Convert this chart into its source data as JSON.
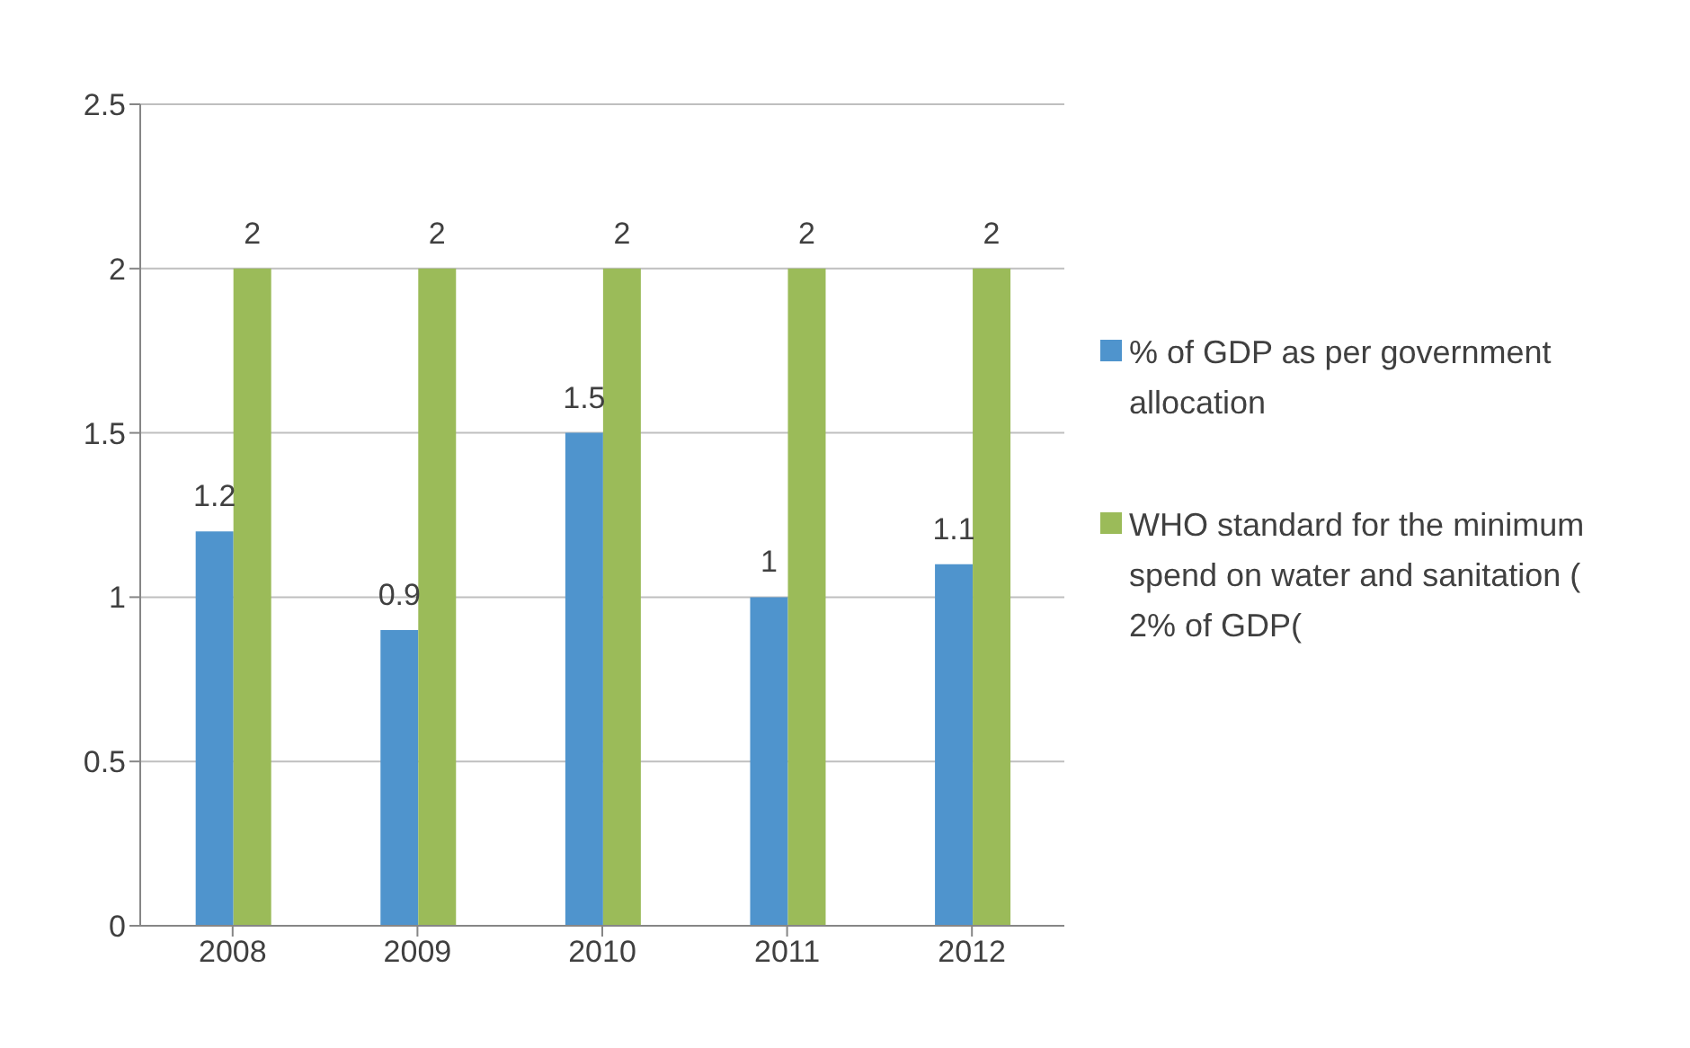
{
  "chart_data": {
    "type": "bar",
    "categories": [
      "2008",
      "2009",
      "2010",
      "2011",
      "2012"
    ],
    "series": [
      {
        "name": "% of GDP as per government allocation",
        "color": "#4f94cd",
        "values": [
          1.2,
          0.9,
          1.5,
          1,
          1.1
        ]
      },
      {
        "name": "WHO standard for the minimum spend on water and sanitation ( 2% of GDP(",
        "color": "#9bbb59",
        "values": [
          2,
          2,
          2,
          2,
          2
        ]
      }
    ],
    "ylim": [
      0,
      2.5
    ],
    "yticks": [
      0,
      0.5,
      1,
      1.5,
      2,
      2.5
    ],
    "grid": "y",
    "legend": "right",
    "data_labels": true
  }
}
